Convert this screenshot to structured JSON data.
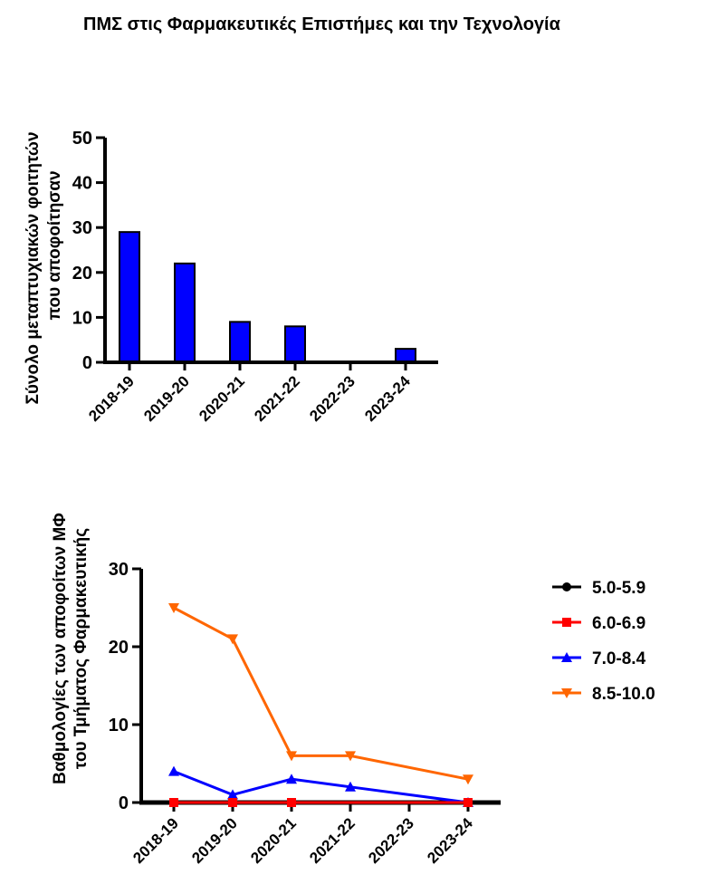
{
  "page": {
    "title": "ΠΜΣ στις Φαρμακευτικές Επιστήμες και την Τεχνολογία"
  },
  "chart_data": [
    {
      "type": "bar",
      "categories": [
        "2018-19",
        "2019-20",
        "2020-21",
        "2021-22",
        "2022-23",
        "2023-24"
      ],
      "values": [
        29,
        22,
        9,
        8,
        0,
        3
      ],
      "ylabel_line1": "Σύνολο μεταπτυχιακών φοιτητών",
      "ylabel_line2": "που αποφοίτησαν",
      "ylim": [
        0,
        50
      ],
      "yticks": [
        0,
        10,
        20,
        30,
        40,
        50
      ],
      "bar_color": "#0000ff",
      "grid": false
    },
    {
      "type": "line",
      "categories": [
        "2018-19",
        "2019-20",
        "2020-21",
        "2021-22",
        "2022-23",
        "2023-24"
      ],
      "ylabel_line1": "Βαθμολογίες των αποφοίτων ΜΦ",
      "ylabel_line2": "του Τμήματος Φαρμακευτικής",
      "ylim": [
        0,
        30
      ],
      "yticks": [
        0,
        10,
        20,
        30
      ],
      "grid": false,
      "legend_position": "right",
      "series": [
        {
          "name": "5.0-5.9",
          "color": "#000000",
          "marker": "circle",
          "values": [
            0,
            0,
            0,
            null,
            null,
            0
          ]
        },
        {
          "name": "6.0-6.9",
          "color": "#ff0000",
          "marker": "square",
          "values": [
            0,
            0,
            0,
            null,
            null,
            0
          ]
        },
        {
          "name": "7.0-8.4",
          "color": "#0000ff",
          "marker": "triangle-up",
          "values": [
            4,
            1,
            3,
            2,
            null,
            0
          ]
        },
        {
          "name": "8.5-10.0",
          "color": "#ff6600",
          "marker": "triangle-down",
          "values": [
            25,
            21,
            6,
            6,
            null,
            3
          ]
        }
      ]
    }
  ]
}
